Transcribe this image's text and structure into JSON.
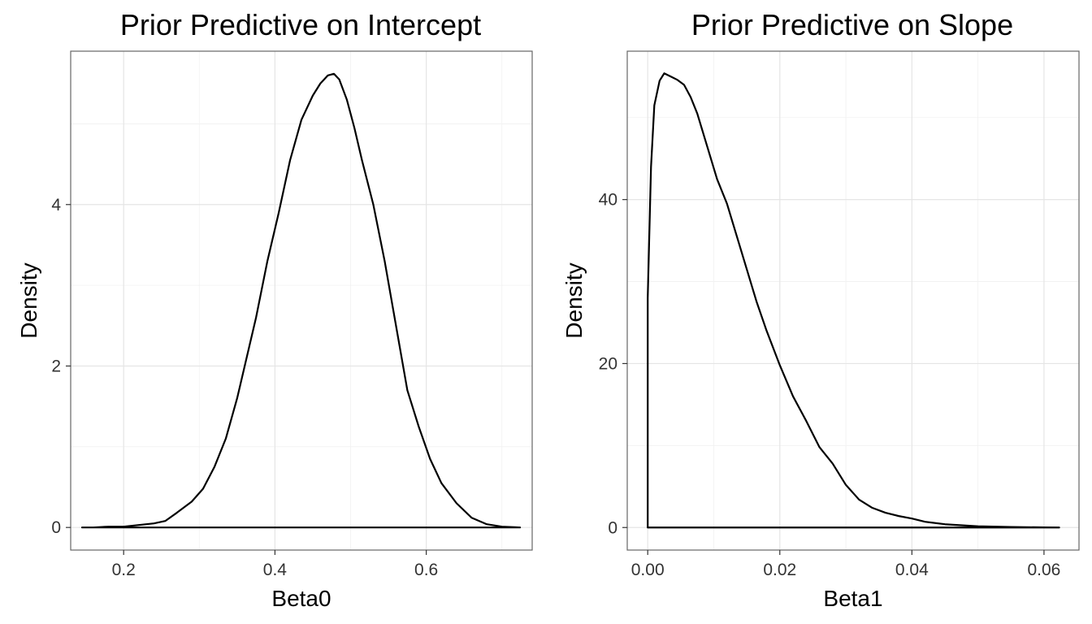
{
  "chart_data": [
    {
      "type": "area",
      "title": "Prior Predictive on Intercept",
      "xlabel": "Beta0",
      "ylabel": "Density",
      "xlim": [
        0.13,
        0.74
      ],
      "ylim": [
        -0.28,
        5.9
      ],
      "xticks": [
        {
          "value": 0.2,
          "label": "0.2"
        },
        {
          "value": 0.4,
          "label": "0.4"
        },
        {
          "value": 0.6,
          "label": "0.6"
        }
      ],
      "yticks": [
        {
          "value": 0,
          "label": "0"
        },
        {
          "value": 2,
          "label": "2"
        },
        {
          "value": 4,
          "label": "4"
        }
      ],
      "grid": true,
      "series": [
        {
          "x": [
            0.145,
            0.16,
            0.18,
            0.2,
            0.22,
            0.24,
            0.255,
            0.27,
            0.29,
            0.305,
            0.32,
            0.335,
            0.35,
            0.36,
            0.375,
            0.39,
            0.405,
            0.42,
            0.435,
            0.45,
            0.46,
            0.47,
            0.478,
            0.485,
            0.495,
            0.505,
            0.515,
            0.53,
            0.545,
            0.56,
            0.575,
            0.59,
            0.605,
            0.62,
            0.64,
            0.66,
            0.68,
            0.7,
            0.724
          ],
          "y": [
            0.0,
            0.0,
            0.01,
            0.01,
            0.03,
            0.05,
            0.08,
            0.18,
            0.32,
            0.48,
            0.75,
            1.1,
            1.6,
            2.0,
            2.6,
            3.3,
            3.9,
            4.55,
            5.05,
            5.35,
            5.5,
            5.6,
            5.62,
            5.55,
            5.3,
            4.95,
            4.55,
            4.0,
            3.3,
            2.5,
            1.7,
            1.25,
            0.85,
            0.55,
            0.3,
            0.12,
            0.04,
            0.01,
            0.0
          ]
        }
      ]
    },
    {
      "type": "area",
      "title": "Prior Predictive on Slope",
      "xlabel": "Beta1",
      "ylabel": "Density",
      "xlim": [
        -0.0031,
        0.0653
      ],
      "ylim": [
        -2.75,
        58.1
      ],
      "xticks": [
        {
          "value": 0.0,
          "label": "0.00"
        },
        {
          "value": 0.02,
          "label": "0.02"
        },
        {
          "value": 0.04,
          "label": "0.04"
        },
        {
          "value": 0.06,
          "label": "0.06"
        }
      ],
      "yticks": [
        {
          "value": 0,
          "label": "0"
        },
        {
          "value": 20,
          "label": "20"
        },
        {
          "value": 40,
          "label": "40"
        }
      ],
      "grid": true,
      "series": [
        {
          "x": [
            0.0,
            0.0005,
            0.001,
            0.0018,
            0.0025,
            0.0035,
            0.0045,
            0.0055,
            0.0065,
            0.0075,
            0.009,
            0.0105,
            0.012,
            0.0135,
            0.015,
            0.0165,
            0.018,
            0.02,
            0.022,
            0.024,
            0.026,
            0.028,
            0.03,
            0.032,
            0.034,
            0.036,
            0.038,
            0.04,
            0.042,
            0.045,
            0.05,
            0.055,
            0.06,
            0.0623
          ],
          "y": [
            28.0,
            44.0,
            51.5,
            54.5,
            55.4,
            55.0,
            54.6,
            54.0,
            52.5,
            50.5,
            46.5,
            42.5,
            39.5,
            35.5,
            31.5,
            27.5,
            24.0,
            19.8,
            16.0,
            13.0,
            9.8,
            7.8,
            5.2,
            3.4,
            2.4,
            1.8,
            1.4,
            1.1,
            0.7,
            0.4,
            0.15,
            0.06,
            0.02,
            0.0
          ]
        }
      ]
    }
  ]
}
